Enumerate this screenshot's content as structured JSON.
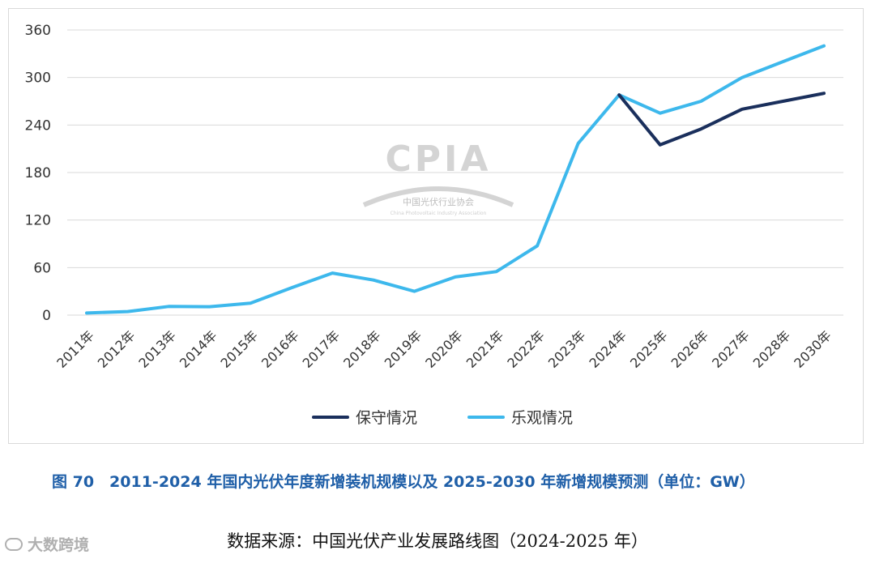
{
  "chart_data": {
    "type": "line",
    "categories": [
      "2011年",
      "2012年",
      "2013年",
      "2014年",
      "2015年",
      "2016年",
      "2017年",
      "2018年",
      "2019年",
      "2020年",
      "2021年",
      "2022年",
      "2023年",
      "2024年",
      "2025年",
      "2026年",
      "2027年",
      "2028年",
      "2030年"
    ],
    "series": [
      {
        "name": "保守情况",
        "color": "#1a2f5c",
        "values": [
          null,
          null,
          null,
          null,
          null,
          null,
          null,
          null,
          null,
          null,
          null,
          null,
          null,
          278,
          215,
          235,
          260,
          270,
          280
        ]
      },
      {
        "name": "乐观情况",
        "color": "#3db8ec",
        "values": [
          2.7,
          4.5,
          10.9,
          10.6,
          15.1,
          34.5,
          53.1,
          44.3,
          30.1,
          48.2,
          54.9,
          87.4,
          216.9,
          278,
          255,
          270,
          300,
          320,
          340
        ]
      }
    ],
    "yticks": [
      0,
      60,
      120,
      180,
      240,
      300,
      360
    ],
    "ylim": [
      0,
      360
    ],
    "grid": true,
    "legend_position": "bottom-center",
    "watermark": {
      "main": "CPIA",
      "cn": "中国光伏行业协会",
      "en": "China Photovoltaic Industry Association"
    }
  },
  "caption": "图 70　2011-2024 年国内光伏年度新增装机规模以及 2025-2030 年新增规模预测（单位：GW）",
  "source": "数据来源：中国光伏产业发展路线图（2024-2025 年）",
  "corner_mark": "大数跨境"
}
